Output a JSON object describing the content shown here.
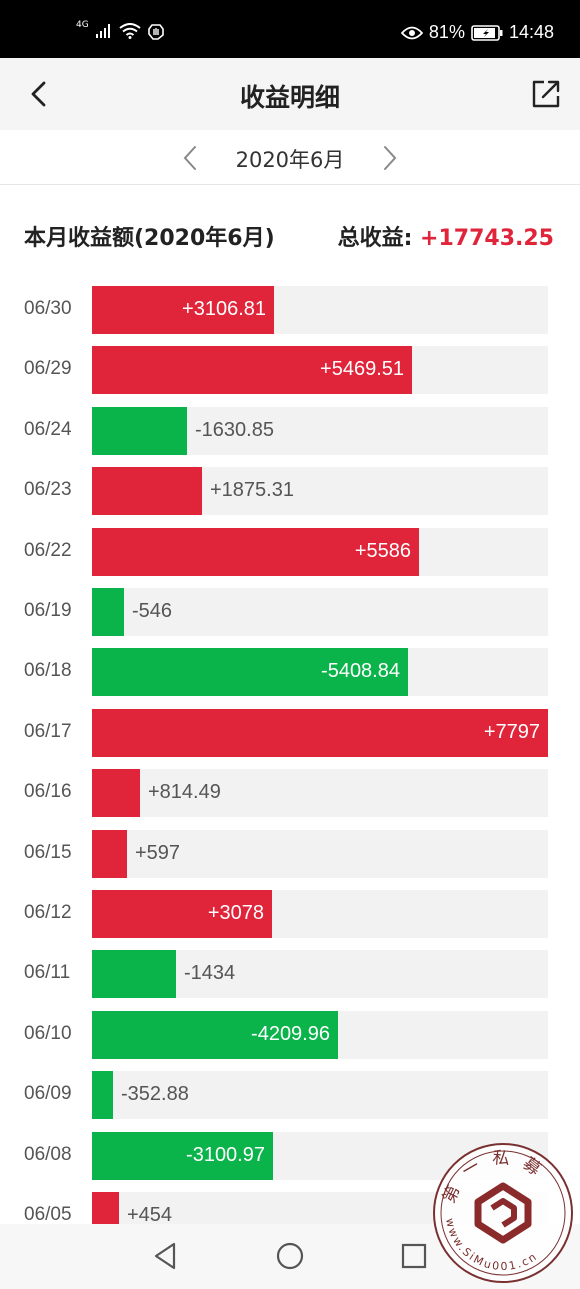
{
  "status_bar": {
    "network": "4G",
    "battery_percent": "81%",
    "time": "14:48",
    "icons": [
      "signal-icon",
      "wifi-icon",
      "hand-icon",
      "eye-icon",
      "battery-icon"
    ]
  },
  "nav": {
    "title": "收益明细",
    "back_icon": "chevron-left-icon",
    "share_icon": "share-icon"
  },
  "month_selector": {
    "label": "2020年6月",
    "prev_icon": "chevron-left-icon",
    "next_icon": "chevron-right-icon"
  },
  "summary": {
    "label": "本月收益额(2020年6月)",
    "total_label": "总收益:",
    "total_value": "+17743.25"
  },
  "colors": {
    "positive": "#e0243a",
    "negative": "#0bb44a",
    "track": "#f2f2f2"
  },
  "chart_data": {
    "type": "bar",
    "orientation": "horizontal",
    "max_abs": 7797,
    "categories": [
      "06/30",
      "06/29",
      "06/24",
      "06/23",
      "06/22",
      "06/19",
      "06/18",
      "06/17",
      "06/16",
      "06/15",
      "06/12",
      "06/11",
      "06/10",
      "06/09",
      "06/08",
      "06/05"
    ],
    "values": [
      3106.81,
      5469.51,
      -1630.85,
      1875.31,
      5586,
      -546,
      -5408.84,
      7797,
      814.49,
      597,
      3078,
      -1434,
      -4209.96,
      -352.88,
      -3100.97,
      454
    ],
    "labels": [
      "+3106.81",
      "+5469.51",
      "-1630.85",
      "+1875.31",
      "+5586",
      "-546",
      "-5408.84",
      "+7797",
      "+814.49",
      "+597",
      "+3078",
      "-1434",
      "-4209.96",
      "-352.88",
      "-3100.97",
      "+454"
    ]
  },
  "bottom_nav": {
    "back_icon": "triangle-back-icon",
    "home_icon": "circle-home-icon",
    "recent_icon": "square-recent-icon"
  },
  "watermark": {
    "top_text": "第一私募",
    "bottom_text": "www.SiMu001.cn"
  }
}
